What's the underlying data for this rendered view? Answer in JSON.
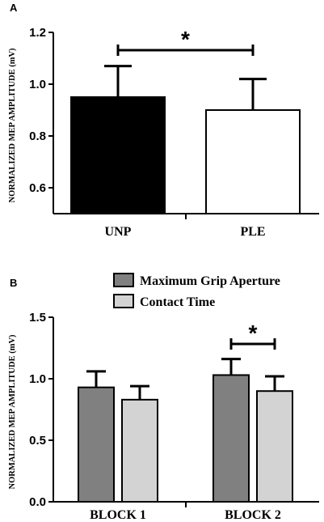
{
  "chart_data": [
    {
      "panel": "A",
      "type": "bar",
      "ylabel": "NORMALIZED MEP AMPLITUDE (mV)",
      "ylim": [
        0.5,
        1.2
      ],
      "yticks": [
        "0.6",
        "0.8",
        "1.0",
        "1.2"
      ],
      "categories": [
        "UNP",
        "PLE"
      ],
      "values": [
        0.95,
        0.9
      ],
      "errors": [
        0.12,
        0.12
      ],
      "colors": [
        "#000000",
        "#ffffff"
      ],
      "significance": {
        "between": [
          "UNP",
          "PLE"
        ],
        "label": "*"
      }
    },
    {
      "panel": "B",
      "type": "bar",
      "ylabel": "NORMALIZED MEP AMPLITUDE (mV)",
      "ylim": [
        0.0,
        1.5
      ],
      "yticks": [
        "0.0",
        "0.5",
        "1.0",
        "1.5"
      ],
      "categories": [
        "BLOCK 1",
        "BLOCK 2"
      ],
      "series": [
        {
          "name": "Maximum Grip Aperture",
          "values": [
            0.93,
            1.03
          ],
          "errors": [
            0.13,
            0.13
          ],
          "color": "#808080"
        },
        {
          "name": "Contact Time",
          "values": [
            0.83,
            0.9
          ],
          "errors": [
            0.11,
            0.12
          ],
          "color": "#d3d3d3"
        }
      ],
      "legend": "top-right",
      "significance": {
        "category": "BLOCK 2",
        "label": "*"
      }
    }
  ]
}
